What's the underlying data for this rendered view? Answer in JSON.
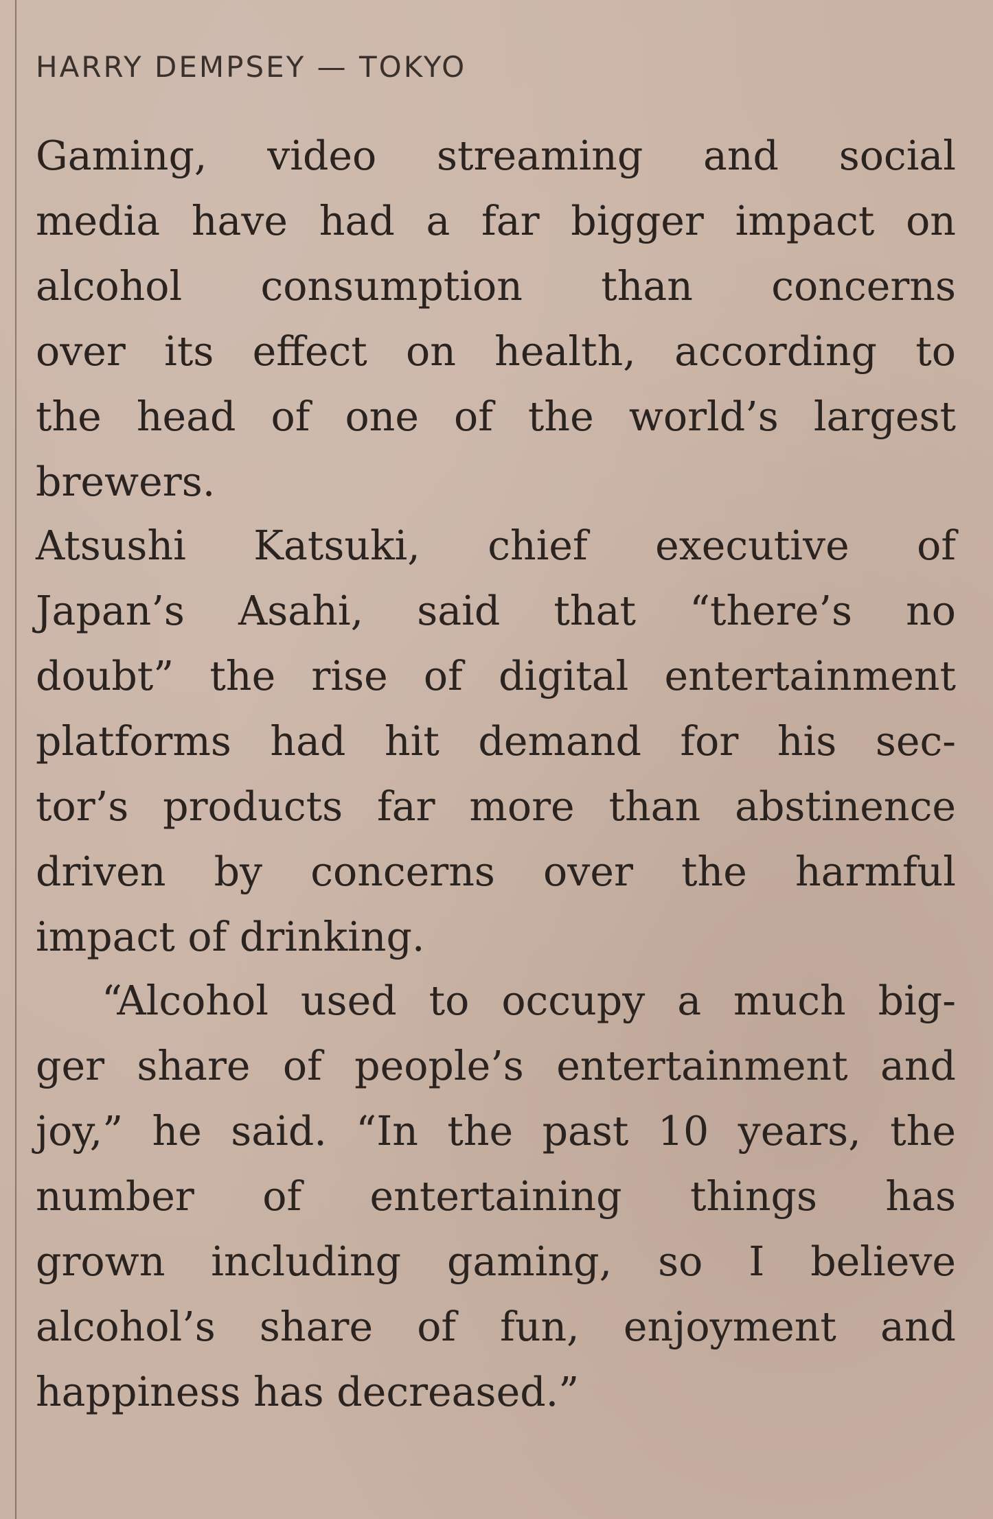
{
  "article": {
    "byline": {
      "author": "HARRY DEMPSEY",
      "separator": "—",
      "dateline": "TOKYO"
    },
    "paragraphs": [
      {
        "lines": [
          "Gaming, video streaming and social",
          "media have had a far bigger impact on",
          "alcohol consumption than concerns",
          "over its effect on health, according to",
          "the head of one of the world’s largest",
          "brewers."
        ]
      },
      {
        "lines": [
          "Atsushi Katsuki, chief executive of",
          "Japan’s Asahi, said that “there’s no",
          "doubt” the rise of digital entertainment",
          "platforms had hit demand for his sec-",
          "tor’s products far more than abstinence",
          "driven by concerns over the harmful",
          "impact of drinking."
        ]
      },
      {
        "lines": [
          "“Alcohol used to occupy a much big-",
          "ger share of people’s entertainment and",
          "joy,” he said. “In the past 10 years, the",
          "number of entertaining things has",
          "grown including gaming, so I believe",
          "alcohol’s share of fun, enjoyment and",
          "happiness has decreased.”"
        ]
      }
    ]
  }
}
